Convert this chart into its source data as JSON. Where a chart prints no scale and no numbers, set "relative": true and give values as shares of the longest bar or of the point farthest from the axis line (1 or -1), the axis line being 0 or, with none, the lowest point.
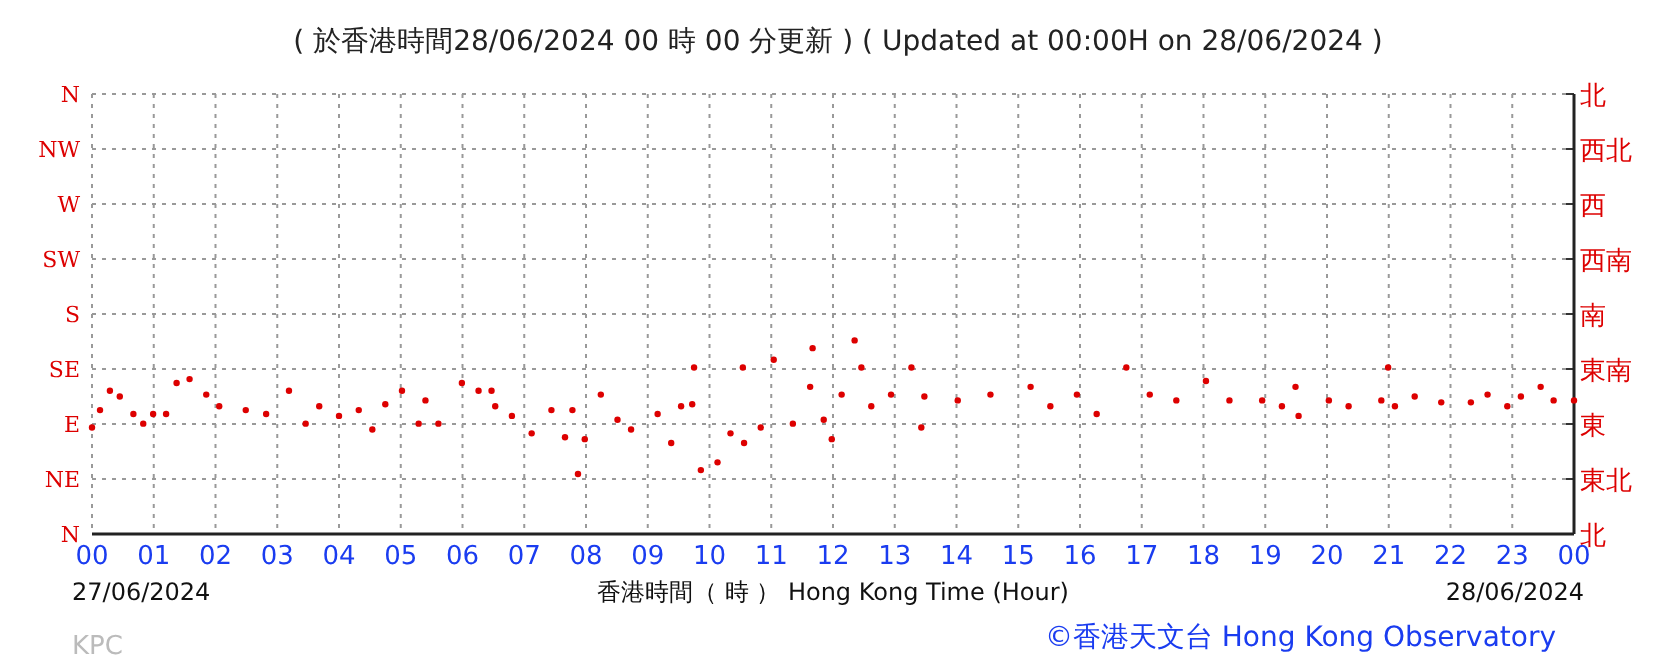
{
  "chart_data": {
    "type": "scatter",
    "title": "( 於香港時間28/06/2024 00 時 00 分更新 ) ( Updated at 00:00H on 28/06/2024 )",
    "xlabel": "香港時間（ 時 ） Hong Kong Time (Hour)",
    "annotations": [
      "27/06/2024",
      "28/06/2024",
      "KPC",
      "©香港天文台 Hong Kong Observatory"
    ],
    "xlim": [
      0,
      24
    ],
    "xticks": [
      {
        "value": 0,
        "label": "00"
      },
      {
        "value": 1,
        "label": "01"
      },
      {
        "value": 2,
        "label": "02"
      },
      {
        "value": 3,
        "label": "03"
      },
      {
        "value": 4,
        "label": "04"
      },
      {
        "value": 5,
        "label": "05"
      },
      {
        "value": 6,
        "label": "06"
      },
      {
        "value": 7,
        "label": "07"
      },
      {
        "value": 8,
        "label": "08"
      },
      {
        "value": 9,
        "label": "09"
      },
      {
        "value": 10,
        "label": "10"
      },
      {
        "value": 11,
        "label": "11"
      },
      {
        "value": 12,
        "label": "12"
      },
      {
        "value": 13,
        "label": "13"
      },
      {
        "value": 14,
        "label": "14"
      },
      {
        "value": 15,
        "label": "15"
      },
      {
        "value": 16,
        "label": "16"
      },
      {
        "value": 17,
        "label": "17"
      },
      {
        "value": 18,
        "label": "18"
      },
      {
        "value": 19,
        "label": "19"
      },
      {
        "value": 20,
        "label": "20"
      },
      {
        "value": 21,
        "label": "21"
      },
      {
        "value": 22,
        "label": "22"
      },
      {
        "value": 23,
        "label": "23"
      },
      {
        "value": 24,
        "label": "00"
      }
    ],
    "y_categories": [
      "N",
      "NW",
      "W",
      "SW",
      "S",
      "SE",
      "E",
      "NE",
      "N"
    ],
    "y2_categories": [
      "北",
      "西北",
      "西",
      "西南",
      "南",
      "東南",
      "東",
      "東北",
      "北"
    ],
    "grid": true,
    "marker": "circle",
    "relative": true,
    "series": [
      {
        "color": "#dd0000",
        "x": [
          0,
          0.13,
          0.29,
          0.45,
          0.67,
          0.83,
          0.99,
          1.2,
          1.37,
          1.58,
          1.85,
          2.06,
          2.49,
          2.82,
          3.19,
          3.46,
          3.68,
          4.0,
          4.32,
          4.54,
          4.75,
          5.02,
          5.29,
          5.4,
          5.61,
          5.99,
          6.26,
          6.47,
          6.53,
          6.8,
          7.12,
          7.44,
          7.66,
          7.78,
          7.87,
          7.98,
          8.24,
          8.51,
          8.73,
          9.16,
          9.38,
          9.54,
          9.72,
          9.75,
          9.86,
          10.13,
          10.34,
          10.56,
          10.54,
          10.83,
          11.04,
          11.35,
          11.63,
          11.67,
          11.85,
          11.98,
          12.14,
          12.35,
          12.46,
          12.62,
          12.94,
          13.27,
          13.43,
          13.48,
          14.02,
          14.55,
          15.2,
          15.52,
          15.95,
          16.27,
          16.75,
          17.13,
          17.56,
          18.04,
          18.42,
          18.95,
          19.27,
          19.49,
          19.54,
          20.03,
          20.35,
          20.88,
          20.99,
          21.1,
          21.42,
          21.85,
          22.33,
          22.6,
          22.92,
          23.14,
          23.46,
          23.67,
          24.0
        ],
        "values": [
          0.55,
          0.64,
          0.74,
          0.71,
          0.62,
          0.57,
          0.62,
          0.62,
          0.78,
          0.8,
          0.72,
          0.66,
          0.64,
          0.62,
          0.74,
          0.57,
          0.66,
          0.61,
          0.64,
          0.54,
          0.67,
          0.74,
          0.57,
          0.69,
          0.57,
          0.78,
          0.74,
          0.74,
          0.66,
          0.61,
          0.52,
          0.64,
          0.5,
          0.64,
          0.31,
          0.49,
          0.72,
          0.59,
          0.54,
          0.62,
          0.47,
          0.66,
          0.67,
          0.86,
          0.33,
          0.37,
          0.52,
          0.47,
          0.86,
          0.55,
          0.9,
          0.57,
          0.76,
          0.96,
          0.59,
          0.49,
          0.72,
          1,
          0.86,
          0.66,
          0.72,
          0.86,
          0.55,
          0.71,
          0.69,
          0.72,
          0.76,
          0.66,
          0.72,
          0.62,
          0.86,
          0.72,
          0.69,
          0.79,
          0.69,
          0.69,
          0.66,
          0.76,
          0.61,
          0.69,
          0.66,
          0.69,
          0.86,
          0.66,
          0.71,
          0.68,
          0.68,
          0.72,
          0.66,
          0.71,
          0.76,
          0.69,
          0.69
        ]
      }
    ]
  }
}
